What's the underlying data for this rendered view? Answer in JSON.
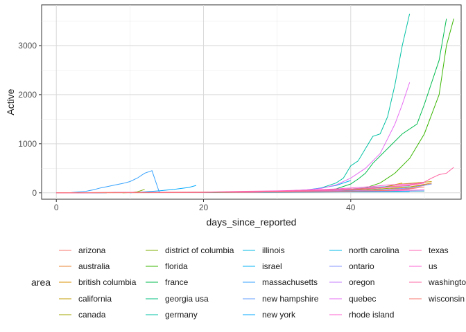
{
  "chart_data": {
    "type": "line",
    "title": "",
    "xlabel": "days_since_reported",
    "ylabel": "Active",
    "xlim": [
      -2,
      55
    ],
    "ylim": [
      -130,
      3830
    ],
    "x_ticks": [
      0,
      20,
      40
    ],
    "y_ticks": [
      0,
      1000,
      2000,
      3000
    ],
    "grid": true,
    "legend_position": "bottom",
    "legend_title": "area",
    "series": [
      {
        "name": "arizona",
        "color": "#F8766D",
        "points": [
          [
            0,
            0
          ],
          [
            10,
            3
          ],
          [
            20,
            5
          ],
          [
            30,
            8
          ],
          [
            40,
            20
          ],
          [
            45,
            40
          ],
          [
            48,
            90
          ],
          [
            50,
            150
          ]
        ]
      },
      {
        "name": "australia",
        "color": "#EA8331",
        "points": [
          [
            0,
            0
          ],
          [
            10,
            5
          ],
          [
            20,
            10
          ],
          [
            30,
            15
          ],
          [
            40,
            30
          ],
          [
            45,
            70
          ],
          [
            48,
            120
          ],
          [
            51,
            200
          ]
        ]
      },
      {
        "name": "british columbia",
        "color": "#D89000",
        "points": [
          [
            0,
            0
          ],
          [
            10,
            5
          ],
          [
            20,
            8
          ],
          [
            30,
            15
          ],
          [
            35,
            30
          ],
          [
            40,
            60
          ],
          [
            44,
            100
          ],
          [
            47,
            200
          ]
        ]
      },
      {
        "name": "california",
        "color": "#C09B00",
        "points": [
          [
            0,
            0
          ],
          [
            10,
            10
          ],
          [
            20,
            15
          ],
          [
            30,
            25
          ],
          [
            35,
            40
          ],
          [
            40,
            70
          ],
          [
            44,
            110
          ],
          [
            47,
            180
          ],
          [
            51,
            230
          ]
        ]
      },
      {
        "name": "canada",
        "color": "#A3A500",
        "points": [
          [
            0,
            0
          ],
          [
            10,
            5
          ],
          [
            20,
            10
          ],
          [
            30,
            20
          ],
          [
            40,
            50
          ],
          [
            44,
            80
          ],
          [
            48,
            120
          ],
          [
            51,
            180
          ]
        ]
      },
      {
        "name": "district of columbia",
        "color": "#7CAE00",
        "points": [
          [
            9,
            0
          ],
          [
            10,
            5
          ],
          [
            11,
            20
          ],
          [
            12,
            70
          ]
        ]
      },
      {
        "name": "florida",
        "color": "#39B600",
        "points": [
          [
            0,
            0
          ],
          [
            10,
            5
          ],
          [
            20,
            8
          ],
          [
            30,
            15
          ],
          [
            36,
            25
          ],
          [
            40,
            50
          ],
          [
            42,
            100
          ],
          [
            44,
            200
          ],
          [
            46,
            400
          ],
          [
            48,
            700
          ],
          [
            50,
            1200
          ],
          [
            52,
            2000
          ],
          [
            53,
            3000
          ],
          [
            54,
            3550
          ]
        ]
      },
      {
        "name": "france",
        "color": "#00BB4E",
        "points": [
          [
            0,
            0
          ],
          [
            10,
            5
          ],
          [
            20,
            10
          ],
          [
            30,
            15
          ],
          [
            35,
            30
          ],
          [
            38,
            80
          ],
          [
            40,
            180
          ],
          [
            41,
            280
          ],
          [
            42,
            400
          ],
          [
            43,
            600
          ],
          [
            45,
            900
          ],
          [
            47,
            1200
          ],
          [
            49,
            1400
          ],
          [
            50,
            1800
          ],
          [
            52,
            2700
          ],
          [
            53,
            3550
          ]
        ]
      },
      {
        "name": "georgia usa",
        "color": "#00BF7D",
        "points": [
          [
            0,
            0
          ],
          [
            10,
            5
          ],
          [
            20,
            10
          ],
          [
            30,
            15
          ],
          [
            35,
            20
          ],
          [
            40,
            25
          ],
          [
            45,
            30
          ],
          [
            50,
            35
          ]
        ]
      },
      {
        "name": "germany",
        "color": "#00C1A3",
        "points": [
          [
            0,
            0
          ],
          [
            10,
            5
          ],
          [
            20,
            10
          ],
          [
            30,
            20
          ],
          [
            34,
            50
          ],
          [
            36,
            100
          ],
          [
            38,
            200
          ],
          [
            39,
            300
          ],
          [
            40,
            550
          ],
          [
            41,
            650
          ],
          [
            42,
            900
          ],
          [
            43,
            1150
          ],
          [
            44,
            1200
          ],
          [
            45,
            1550
          ],
          [
            46,
            2200
          ],
          [
            47,
            3000
          ],
          [
            48,
            3650
          ]
        ]
      },
      {
        "name": "illinois",
        "color": "#00BAE0",
        "points": [
          [
            0,
            0
          ],
          [
            10,
            5
          ],
          [
            20,
            10
          ],
          [
            30,
            20
          ],
          [
            35,
            40
          ],
          [
            40,
            80
          ],
          [
            44,
            120
          ],
          [
            48,
            140
          ]
        ]
      },
      {
        "name": "israel",
        "color": "#00B0F6",
        "points": [
          [
            0,
            0
          ],
          [
            10,
            5
          ],
          [
            20,
            10
          ],
          [
            30,
            30
          ],
          [
            34,
            60
          ],
          [
            36,
            100
          ],
          [
            38,
            150
          ],
          [
            40,
            250
          ]
        ]
      },
      {
        "name": "massachusetts",
        "color": "#35A2FF",
        "points": [
          [
            0,
            0
          ],
          [
            2,
            5
          ],
          [
            4,
            30
          ],
          [
            5,
            60
          ],
          [
            6,
            100
          ],
          [
            7,
            130
          ],
          [
            8,
            160
          ],
          [
            9,
            190
          ],
          [
            10,
            230
          ],
          [
            11,
            300
          ],
          [
            12,
            400
          ],
          [
            13,
            450
          ],
          [
            14,
            10
          ]
        ]
      },
      {
        "name": "new hampshire",
        "color": "#619CFF",
        "points": [
          [
            0,
            0
          ],
          [
            10,
            5
          ],
          [
            20,
            10
          ],
          [
            30,
            15
          ],
          [
            40,
            20
          ],
          [
            45,
            25
          ],
          [
            50,
            40
          ]
        ]
      },
      {
        "name": "new york",
        "color": "#00A9FF",
        "points": [
          [
            10,
            0
          ],
          [
            12,
            20
          ],
          [
            14,
            40
          ],
          [
            16,
            70
          ],
          [
            18,
            110
          ],
          [
            19,
            150
          ]
        ]
      },
      {
        "name": "north carolina",
        "color": "#00B8E7",
        "points": [
          [
            0,
            0
          ],
          [
            10,
            5
          ],
          [
            20,
            8
          ],
          [
            30,
            12
          ],
          [
            40,
            18
          ],
          [
            45,
            20
          ],
          [
            48,
            25
          ]
        ]
      },
      {
        "name": "ontario",
        "color": "#8494FF",
        "points": [
          [
            0,
            0
          ],
          [
            10,
            5
          ],
          [
            20,
            10
          ],
          [
            30,
            20
          ],
          [
            40,
            40
          ],
          [
            44,
            60
          ],
          [
            48,
            100
          ],
          [
            51,
            180
          ]
        ]
      },
      {
        "name": "oregon",
        "color": "#C77CFF",
        "points": [
          [
            0,
            0
          ],
          [
            10,
            5
          ],
          [
            20,
            10
          ],
          [
            30,
            20
          ],
          [
            35,
            30
          ],
          [
            40,
            40
          ],
          [
            45,
            50
          ],
          [
            48,
            60
          ]
        ]
      },
      {
        "name": "quebec",
        "color": "#E76BF3",
        "points": [
          [
            0,
            0
          ],
          [
            10,
            5
          ],
          [
            20,
            10
          ],
          [
            30,
            30
          ],
          [
            34,
            60
          ],
          [
            36,
            90
          ],
          [
            38,
            160
          ],
          [
            40,
            300
          ],
          [
            42,
            500
          ],
          [
            44,
            800
          ],
          [
            45,
            1100
          ],
          [
            46,
            1400
          ],
          [
            47,
            1800
          ],
          [
            48,
            2250
          ]
        ]
      },
      {
        "name": "rhode island",
        "color": "#FF61CC",
        "points": [
          [
            0,
            0
          ],
          [
            10,
            5
          ],
          [
            20,
            10
          ],
          [
            30,
            20
          ],
          [
            40,
            30
          ],
          [
            45,
            40
          ],
          [
            50,
            60
          ]
        ]
      },
      {
        "name": "texas",
        "color": "#FF63B6",
        "points": [
          [
            0,
            0
          ],
          [
            10,
            5
          ],
          [
            20,
            10
          ],
          [
            30,
            20
          ],
          [
            40,
            60
          ],
          [
            44,
            100
          ],
          [
            48,
            150
          ],
          [
            50,
            200
          ]
        ]
      },
      {
        "name": "us",
        "color": "#FD61D1",
        "points": [
          [
            0,
            0
          ],
          [
            5,
            5
          ],
          [
            10,
            10
          ],
          [
            20,
            15
          ],
          [
            25,
            30
          ],
          [
            30,
            40
          ],
          [
            35,
            60
          ],
          [
            38,
            80
          ],
          [
            40,
            100
          ],
          [
            43,
            130
          ],
          [
            45,
            160
          ],
          [
            48,
            180
          ],
          [
            50,
            200
          ]
        ]
      },
      {
        "name": "washington",
        "color": "#FF67A4",
        "points": [
          [
            0,
            0
          ],
          [
            10,
            5
          ],
          [
            20,
            10
          ],
          [
            30,
            30
          ],
          [
            35,
            50
          ],
          [
            40,
            80
          ],
          [
            45,
            120
          ],
          [
            48,
            160
          ],
          [
            50,
            220
          ],
          [
            51,
            300
          ],
          [
            52,
            370
          ],
          [
            53,
            400
          ],
          [
            54,
            520
          ]
        ]
      },
      {
        "name": "wisconsin",
        "color": "#F8766D",
        "points": [
          [
            0,
            0
          ],
          [
            10,
            5
          ],
          [
            20,
            10
          ],
          [
            30,
            20
          ],
          [
            40,
            30
          ],
          [
            45,
            50
          ],
          [
            48,
            80
          ],
          [
            50,
            120
          ]
        ]
      }
    ]
  }
}
